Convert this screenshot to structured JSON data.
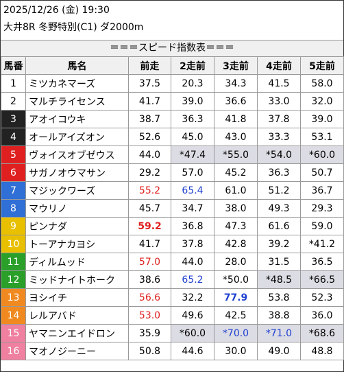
{
  "header": {
    "line1": "2025/12/26 (金) 19:30",
    "line2": "大井8R 冬野特別(C1) ダ2000m",
    "subtitle": "＝＝＝スピード指数表＝＝＝"
  },
  "columns": [
    "馬番",
    "馬名",
    "前走",
    "2走前",
    "3走前",
    "4走前",
    "5走前"
  ],
  "colors": {
    "cell_red": "#e02020",
    "cell_blue": "#2040d0",
    "cell_gray_bg": "#dcdce4",
    "bracket": [
      "#ffffff",
      "#222222",
      "#e02020",
      "#2f6fd6",
      "#e8c000",
      "#2aa02a",
      "#f08a20",
      "#f080a0"
    ]
  },
  "rows": [
    {
      "no": "1",
      "name": "ミツカネマーズ",
      "bracket": 1,
      "vals": [
        "37.5",
        "20.3",
        "34.3",
        "41.5",
        "58.0"
      ],
      "styles": [
        "",
        "",
        "",
        "",
        ""
      ],
      "bg": [
        false,
        false,
        false,
        false,
        false
      ]
    },
    {
      "no": "2",
      "name": "マルチライセンス",
      "bracket": 1,
      "vals": [
        "41.7",
        "39.0",
        "36.6",
        "33.0",
        "32.0"
      ],
      "styles": [
        "",
        "",
        "",
        "",
        ""
      ],
      "bg": [
        false,
        false,
        false,
        false,
        false
      ]
    },
    {
      "no": "3",
      "name": "アオイコウキ",
      "bracket": 2,
      "vals": [
        "38.7",
        "36.3",
        "41.8",
        "37.8",
        "39.0"
      ],
      "styles": [
        "",
        "",
        "",
        "",
        ""
      ],
      "bg": [
        false,
        false,
        false,
        false,
        false
      ]
    },
    {
      "no": "4",
      "name": "オールアイズオン",
      "bracket": 2,
      "vals": [
        "52.6",
        "45.0",
        "43.0",
        "33.3",
        "53.1"
      ],
      "styles": [
        "",
        "",
        "",
        "",
        ""
      ],
      "bg": [
        false,
        false,
        false,
        false,
        false
      ]
    },
    {
      "no": "5",
      "name": "ヴォイスオブゼウス",
      "bracket": 3,
      "vals": [
        "44.0",
        "*47.4",
        "*55.0",
        "*54.0",
        "*60.0"
      ],
      "styles": [
        "",
        "",
        "",
        "",
        ""
      ],
      "bg": [
        false,
        true,
        true,
        true,
        true
      ]
    },
    {
      "no": "6",
      "name": "サガノオウマサン",
      "bracket": 3,
      "vals": [
        "29.2",
        "57.0",
        "45.2",
        "36.3",
        "50.7"
      ],
      "styles": [
        "",
        "",
        "",
        "",
        ""
      ],
      "bg": [
        false,
        false,
        false,
        false,
        false
      ]
    },
    {
      "no": "7",
      "name": "マジックワーズ",
      "bracket": 4,
      "vals": [
        "55.2",
        "65.4",
        "61.0",
        "51.2",
        "36.7"
      ],
      "styles": [
        "red",
        "blue",
        "",
        "",
        ""
      ],
      "bg": [
        false,
        false,
        false,
        false,
        false
      ]
    },
    {
      "no": "8",
      "name": "マウリノ",
      "bracket": 4,
      "vals": [
        "45.7",
        "34.7",
        "38.0",
        "49.3",
        "29.3"
      ],
      "styles": [
        "",
        "",
        "",
        "",
        ""
      ],
      "bg": [
        false,
        false,
        false,
        false,
        false
      ]
    },
    {
      "no": "9",
      "name": "ピンナダ",
      "bracket": 5,
      "vals": [
        "59.2",
        "36.8",
        "47.3",
        "61.6",
        "59.0"
      ],
      "styles": [
        "red bold",
        "",
        "",
        "",
        ""
      ],
      "bg": [
        false,
        false,
        false,
        false,
        false
      ]
    },
    {
      "no": "10",
      "name": "トーアナカヨシ",
      "bracket": 5,
      "vals": [
        "41.7",
        "37.8",
        "42.8",
        "39.2",
        "*41.2"
      ],
      "styles": [
        "",
        "",
        "",
        "",
        ""
      ],
      "bg": [
        false,
        false,
        false,
        false,
        false
      ]
    },
    {
      "no": "11",
      "name": "ディルムッド",
      "bracket": 6,
      "vals": [
        "57.0",
        "44.0",
        "28.0",
        "31.5",
        "36.5"
      ],
      "styles": [
        "red",
        "",
        "",
        "",
        ""
      ],
      "bg": [
        false,
        false,
        false,
        false,
        false
      ]
    },
    {
      "no": "12",
      "name": "ミッドナイトホーク",
      "bracket": 6,
      "vals": [
        "38.6",
        "65.2",
        "*50.0",
        "*48.5",
        "*66.5"
      ],
      "styles": [
        "",
        "blue",
        "",
        "",
        ""
      ],
      "bg": [
        false,
        false,
        false,
        true,
        true
      ]
    },
    {
      "no": "13",
      "name": "ヨシイチ",
      "bracket": 7,
      "vals": [
        "56.6",
        "32.2",
        "77.9",
        "53.8",
        "52.3"
      ],
      "styles": [
        "red",
        "",
        "blue bold",
        "",
        ""
      ],
      "bg": [
        false,
        false,
        false,
        false,
        false
      ]
    },
    {
      "no": "14",
      "name": "レルアバド",
      "bracket": 7,
      "vals": [
        "53.0",
        "49.6",
        "42.5",
        "38.8",
        "36.0"
      ],
      "styles": [
        "red",
        "",
        "",
        "",
        ""
      ],
      "bg": [
        false,
        false,
        false,
        false,
        false
      ]
    },
    {
      "no": "15",
      "name": "ヤマニンエイドロン",
      "bracket": 8,
      "vals": [
        "35.9",
        "*60.0",
        "*70.0",
        "*71.0",
        "*68.6"
      ],
      "styles": [
        "",
        "",
        "blue",
        "blue",
        ""
      ],
      "bg": [
        false,
        true,
        true,
        true,
        true
      ]
    },
    {
      "no": "16",
      "name": "マオノジーニー",
      "bracket": 8,
      "vals": [
        "50.8",
        "44.6",
        "30.0",
        "49.0",
        "48.8"
      ],
      "styles": [
        "",
        "",
        "",
        "",
        ""
      ],
      "bg": [
        false,
        false,
        false,
        false,
        false
      ]
    }
  ]
}
